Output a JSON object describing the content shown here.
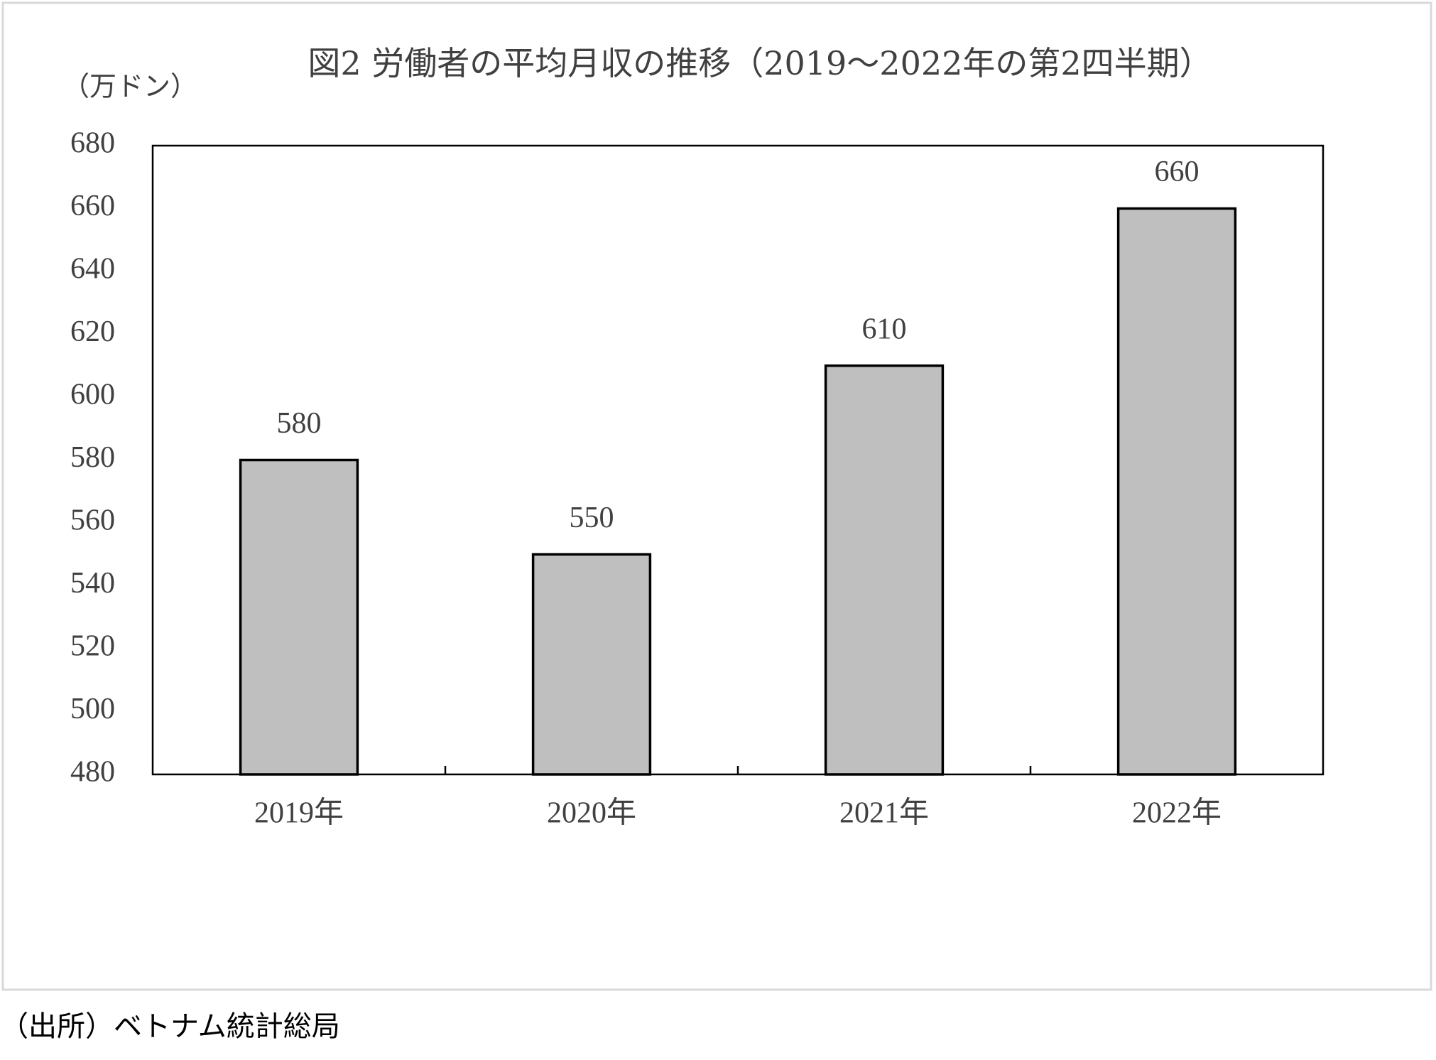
{
  "chart_data": {
    "type": "bar",
    "title": "図2 労働者の平均月収の推移（2019～2022年の第2四半期）",
    "y_label": "（万ドン）",
    "categories": [
      "2019年",
      "2020年",
      "2021年",
      "2022年"
    ],
    "values": [
      580,
      550,
      610,
      660
    ],
    "color": "#bfbfbf",
    "ylim": [
      480,
      680
    ],
    "yticks": [
      480,
      500,
      520,
      540,
      560,
      580,
      600,
      620,
      640,
      660,
      680
    ],
    "grid": false,
    "source": "（出所）ベトナム統計総局"
  }
}
